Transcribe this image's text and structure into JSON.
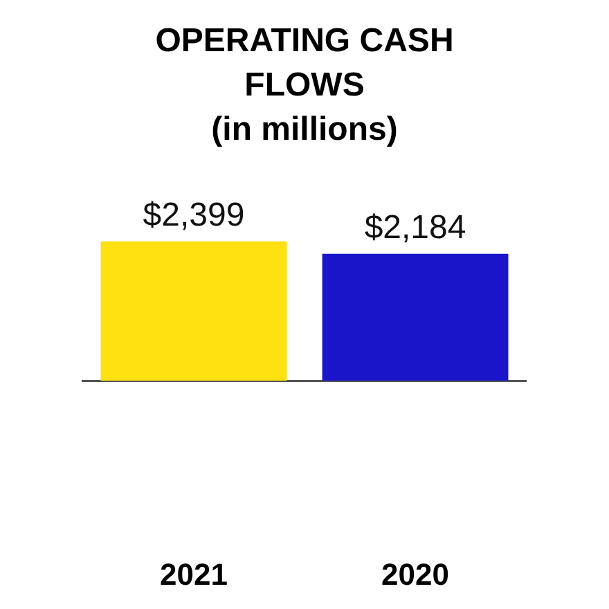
{
  "chart_data": {
    "type": "bar",
    "title": "OPERATING CASH FLOWS",
    "subtitle": "(in millions)",
    "categories": [
      "2021",
      "2020"
    ],
    "values": [
      2399,
      2184
    ],
    "colors": [
      "#ffe011",
      "#1a15c8"
    ],
    "value_labels": [
      "$2,399",
      "$2,184"
    ],
    "grid": false,
    "legend": false,
    "tick_labels": "x"
  }
}
